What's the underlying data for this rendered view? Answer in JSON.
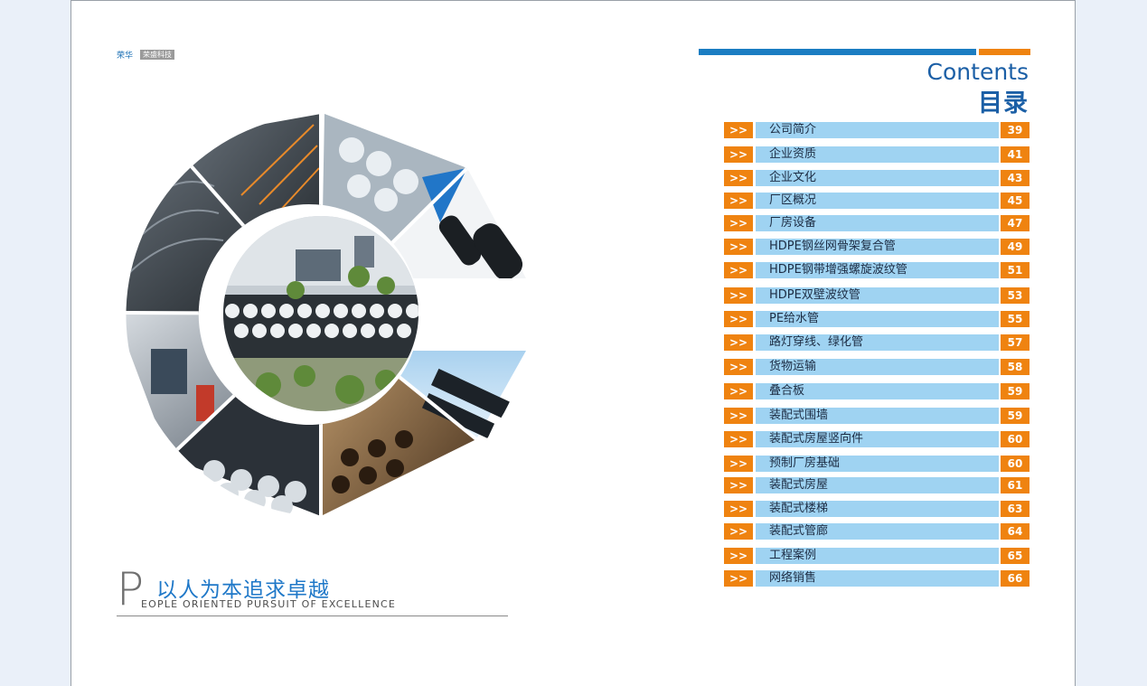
{
  "brand": {
    "name": "荣华",
    "tag": "荣盛科技"
  },
  "slogan": {
    "letter": "P",
    "cn": "以人为本追求卓越",
    "en": "EOPLE ORIENTED PURSUIT OF EXCELLENCE"
  },
  "contents": {
    "title_en": "Contents",
    "title_cn": "目录"
  },
  "toc": [
    {
      "arrow": ">>",
      "label": "公司简介",
      "page": "39"
    },
    {
      "arrow": ">>",
      "label": "企业资质",
      "page": "41"
    },
    {
      "arrow": ">>",
      "label": "企业文化",
      "page": "43"
    },
    {
      "arrow": ">>",
      "label": "厂区概况",
      "page": "45"
    },
    {
      "arrow": ">>",
      "label": "厂房设备",
      "page": "47"
    },
    {
      "arrow": ">>",
      "label": "HDPE钢丝网骨架复合管",
      "page": "49"
    },
    {
      "arrow": ">>",
      "label": "HDPE钢带增强螺旋波纹管",
      "page": "51"
    },
    {
      "arrow": ">>",
      "label": "HDPE双壁波纹管",
      "page": "53"
    },
    {
      "arrow": ">>",
      "label": "PE给水管",
      "page": "55"
    },
    {
      "arrow": ">>",
      "label": "路灯穿线、绿化管",
      "page": "57"
    },
    {
      "arrow": ">>",
      "label": "货物运输",
      "page": "58"
    },
    {
      "arrow": ">>",
      "label": "叠合板",
      "page": "59"
    },
    {
      "arrow": ">>",
      "label": "装配式围墙",
      "page": "59"
    },
    {
      "arrow": ">>",
      "label": "装配式房屋竖向件",
      "page": "60"
    },
    {
      "arrow": ">>",
      "label": "预制厂房基础",
      "page": "60"
    },
    {
      "arrow": ">>",
      "label": "装配式房屋",
      "page": "61"
    },
    {
      "arrow": ">>",
      "label": "装配式楼梯",
      "page": "63"
    },
    {
      "arrow": ">>",
      "label": "装配式管廊",
      "page": "64"
    },
    {
      "arrow": ">>",
      "label": "工程案例",
      "page": "65"
    },
    {
      "arrow": ">>",
      "label": "网络销售",
      "page": "66"
    }
  ],
  "colors": {
    "accent_blue": "#1b7dc2",
    "accent_orange": "#ef8310",
    "row_blue": "#9fd3f2",
    "title_blue": "#1b5fa6"
  }
}
